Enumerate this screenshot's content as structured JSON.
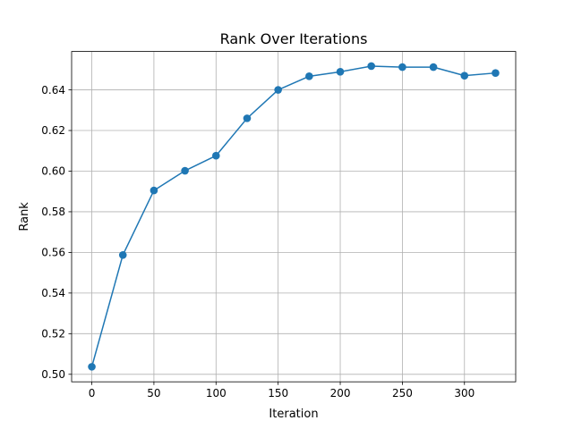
{
  "chart_data": {
    "type": "line",
    "title": "Rank Over Iterations",
    "xlabel": "Iteration",
    "ylabel": "Rank",
    "xlim": [
      -16.25,
      341.25
    ],
    "ylim": [
      0.4963,
      0.6589
    ],
    "xticks": [
      0,
      50,
      100,
      150,
      200,
      250,
      300
    ],
    "yticks": [
      0.5,
      0.52,
      0.54,
      0.56,
      0.58,
      0.6,
      0.62,
      0.64
    ],
    "xtick_labels": [
      "0",
      "50",
      "100",
      "150",
      "200",
      "250",
      "300"
    ],
    "ytick_labels": [
      "0.50",
      "0.52",
      "0.54",
      "0.56",
      "0.58",
      "0.60",
      "0.62",
      "0.64"
    ],
    "grid": true,
    "series": [
      {
        "color": "#1f77b4",
        "marker": "circle",
        "x": [
          0,
          25,
          50,
          75,
          100,
          125,
          150,
          175,
          200,
          225,
          250,
          275,
          300,
          325
        ],
        "y": [
          0.5037,
          0.5587,
          0.5905,
          0.6002,
          0.6076,
          0.626,
          0.64,
          0.6467,
          0.6489,
          0.6517,
          0.6512,
          0.6512,
          0.647,
          0.6483
        ]
      }
    ]
  }
}
